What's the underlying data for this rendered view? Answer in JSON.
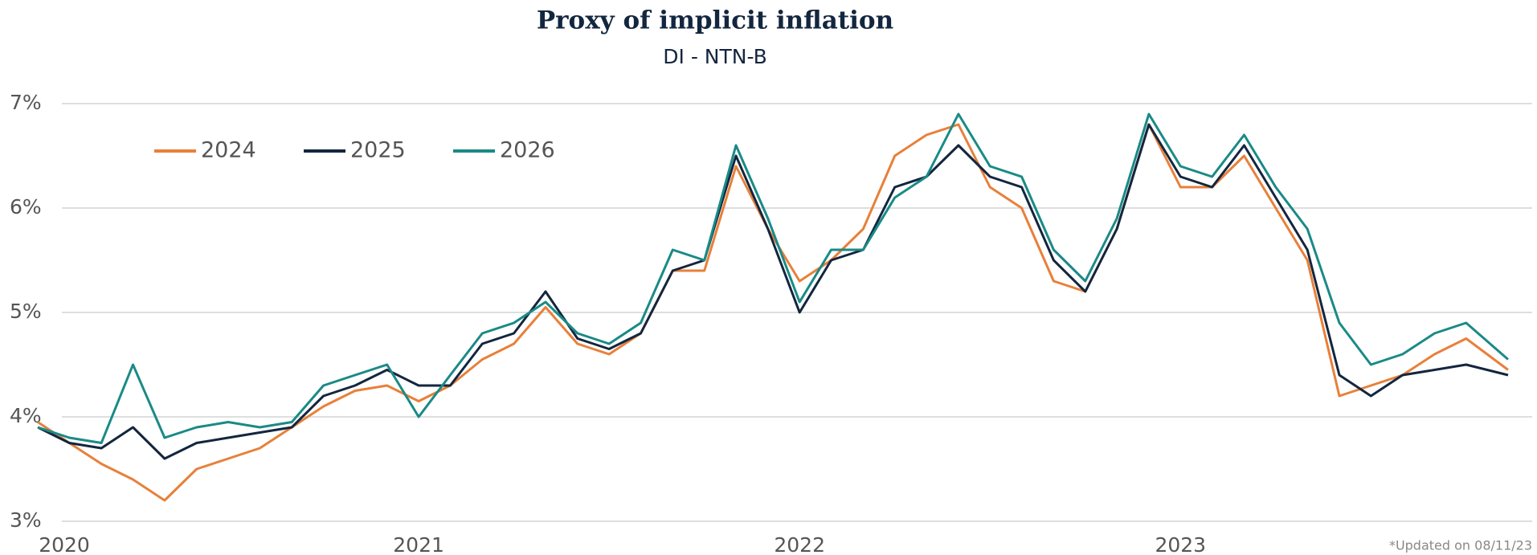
{
  "chart_data": {
    "type": "line",
    "title": "Proxy of implicit inflation",
    "subtitle": "DI - NTN-B",
    "annotation": "*Updated on 08/11/23",
    "x": [
      2020,
      2020.083,
      2020.167,
      2020.25,
      2020.333,
      2020.417,
      2020.5,
      2020.583,
      2020.667,
      2020.75,
      2020.833,
      2020.917,
      2021,
      2021.083,
      2021.167,
      2021.25,
      2021.333,
      2021.417,
      2021.5,
      2021.583,
      2021.667,
      2021.75,
      2021.833,
      2021.917,
      2022,
      2022.083,
      2022.167,
      2022.25,
      2022.333,
      2022.417,
      2022.5,
      2022.583,
      2022.667,
      2022.75,
      2022.833,
      2022.917,
      2023,
      2023.083,
      2023.167,
      2023.25,
      2023.333,
      2023.417,
      2023.5,
      2023.583,
      2023.667,
      2023.75,
      2023.86
    ],
    "series": [
      {
        "name": "2024",
        "color": "#e8803a",
        "values": [
          3.95,
          3.75,
          3.55,
          3.4,
          3.2,
          3.5,
          3.6,
          3.7,
          3.9,
          4.1,
          4.25,
          4.3,
          4.15,
          4.3,
          4.55,
          4.7,
          5.05,
          4.7,
          4.6,
          4.8,
          5.4,
          5.4,
          6.4,
          5.8,
          5.3,
          5.5,
          5.8,
          6.5,
          6.7,
          6.8,
          6.2,
          6.0,
          5.3,
          5.2,
          5.8,
          6.8,
          6.2,
          6.2,
          6.5,
          6.0,
          5.5,
          4.2,
          4.3,
          4.4,
          4.6,
          4.75,
          4.45
        ]
      },
      {
        "name": "2025",
        "color": "#13263f",
        "values": [
          3.9,
          3.75,
          3.7,
          3.9,
          3.6,
          3.75,
          3.8,
          3.85,
          3.9,
          4.2,
          4.3,
          4.45,
          4.3,
          4.3,
          4.7,
          4.8,
          5.2,
          4.75,
          4.65,
          4.8,
          5.4,
          5.5,
          6.5,
          5.8,
          5.0,
          5.5,
          5.6,
          6.2,
          6.3,
          6.6,
          6.3,
          6.2,
          5.5,
          5.2,
          5.8,
          6.8,
          6.3,
          6.2,
          6.6,
          6.1,
          5.6,
          4.4,
          4.2,
          4.4,
          4.45,
          4.5,
          4.4
        ]
      },
      {
        "name": "2026",
        "color": "#1a8a86",
        "values": [
          3.9,
          3.8,
          3.75,
          4.5,
          3.8,
          3.9,
          3.95,
          3.9,
          3.95,
          4.3,
          4.4,
          4.5,
          4.0,
          4.4,
          4.8,
          4.9,
          5.1,
          4.8,
          4.7,
          4.9,
          5.6,
          5.5,
          6.6,
          5.9,
          5.1,
          5.6,
          5.6,
          6.1,
          6.3,
          6.9,
          6.4,
          6.3,
          5.6,
          5.3,
          5.9,
          6.9,
          6.4,
          6.3,
          6.7,
          6.2,
          5.8,
          4.9,
          4.5,
          4.6,
          4.8,
          4.9,
          4.55
        ]
      }
    ],
    "xlim": [
      2020,
      2023.86
    ],
    "xticks": [
      2020,
      2021,
      2022,
      2023
    ],
    "ylim": [
      3,
      7
    ],
    "yticks": [
      {
        "value": 3,
        "label": "3%"
      },
      {
        "value": 4,
        "label": "4%"
      },
      {
        "value": 5,
        "label": "5%"
      },
      {
        "value": 6,
        "label": "6%"
      },
      {
        "value": 7,
        "label": "7%"
      }
    ],
    "grid": true,
    "legend": "top-left"
  }
}
